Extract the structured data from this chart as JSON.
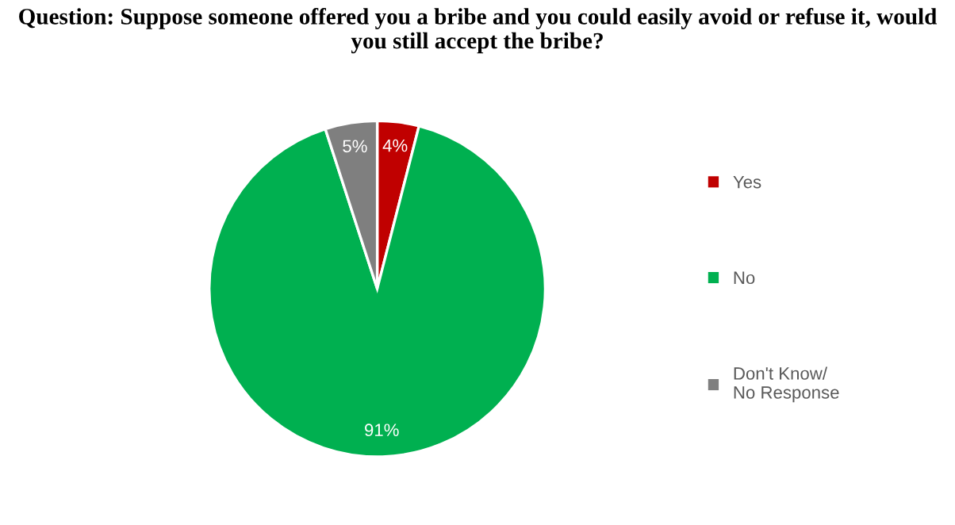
{
  "chart_data": {
    "type": "pie",
    "title": "Question: Suppose someone offered you a bribe and you could easily avoid or refuse it, would you still accept the bribe?",
    "categories": [
      "Yes",
      "No",
      "Don't Know/\nNo Response"
    ],
    "values": [
      4,
      91,
      5
    ],
    "colors": [
      "#c00000",
      "#00b050",
      "#7f7f7f"
    ],
    "value_labels": [
      "4%",
      "91%",
      "5%"
    ],
    "legend": "right"
  }
}
